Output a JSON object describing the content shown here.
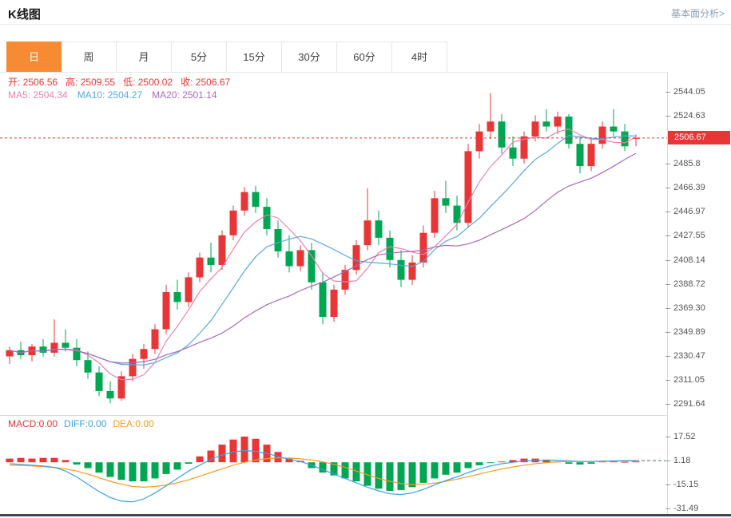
{
  "header": {
    "title": "K线图",
    "link_label": "基本面分析>"
  },
  "tabs": {
    "items": [
      "日",
      "周",
      "月",
      "5分",
      "15分",
      "30分",
      "60分",
      "4时"
    ],
    "selected": "日",
    "selected_color": "#f78b33"
  },
  "ohlc": {
    "color": "#e83535",
    "items": [
      {
        "label": "开:",
        "value": "2506.56"
      },
      {
        "label": "高:",
        "value": "2509.55"
      },
      {
        "label": "低:",
        "value": "2500.02"
      },
      {
        "label": "收:",
        "value": "2506.67"
      }
    ]
  },
  "ma_legend": {
    "items": [
      {
        "label": "MA5:",
        "value": "2504.34",
        "color": "#f080ab"
      },
      {
        "label": "MA10:",
        "value": "2504.27",
        "color": "#55a8e0"
      },
      {
        "label": "MA20:",
        "value": "2501.14",
        "color": "#a868b8"
      }
    ]
  },
  "macd_legend": {
    "items": [
      {
        "label": "MACD:",
        "value": "0.00",
        "color": "#e83535"
      },
      {
        "label": "DIFF:",
        "value": "0.00",
        "color": "#3ba0e6"
      },
      {
        "label": "DEA:",
        "value": "0.00",
        "color": "#f59a23"
      }
    ]
  },
  "chart_data": [
    {
      "type": "candlestick",
      "title": "K线图 日线",
      "ylim": [
        2282.6,
        2560.2
      ],
      "y_axis_labels": [
        "2544.05",
        "2524.63",
        "2485.8",
        "2466.39",
        "2446.97",
        "2427.55",
        "2408.14",
        "2388.72",
        "2369.30",
        "2349.89",
        "2330.47",
        "2311.05",
        "2291.64"
      ],
      "current_price": 2506.67,
      "current_price_label": "2506.67",
      "ma_windows": [
        5,
        10,
        20
      ],
      "colors": {
        "up": "#e83535",
        "down": "#00a651",
        "ma5": "#f080ab",
        "ma10": "#55a8e0",
        "ma20": "#a868b8",
        "price_line": "#e83535"
      },
      "candles": [
        [
          2330,
          2338,
          2324,
          2335
        ],
        [
          2335,
          2342,
          2328,
          2331
        ],
        [
          2331,
          2340,
          2326,
          2338
        ],
        [
          2338,
          2344,
          2330,
          2333
        ],
        [
          2333,
          2360,
          2330,
          2341
        ],
        [
          2341,
          2352,
          2334,
          2337
        ],
        [
          2337,
          2344,
          2322,
          2327
        ],
        [
          2327,
          2334,
          2312,
          2317
        ],
        [
          2317,
          2322,
          2298,
          2302
        ],
        [
          2302,
          2310,
          2292,
          2296
        ],
        [
          2296,
          2318,
          2294,
          2314
        ],
        [
          2314,
          2332,
          2310,
          2328
        ],
        [
          2328,
          2340,
          2320,
          2336
        ],
        [
          2336,
          2356,
          2332,
          2352
        ],
        [
          2352,
          2388,
          2348,
          2382
        ],
        [
          2382,
          2392,
          2368,
          2374
        ],
        [
          2374,
          2398,
          2370,
          2394
        ],
        [
          2394,
          2414,
          2390,
          2410
        ],
        [
          2410,
          2422,
          2398,
          2404
        ],
        [
          2404,
          2432,
          2400,
          2428
        ],
        [
          2428,
          2452,
          2424,
          2448
        ],
        [
          2448,
          2467,
          2444,
          2463
        ],
        [
          2463,
          2468,
          2446,
          2451
        ],
        [
          2451,
          2458,
          2428,
          2433
        ],
        [
          2433,
          2440,
          2410,
          2415
        ],
        [
          2415,
          2428,
          2398,
          2403
        ],
        [
          2403,
          2420,
          2399,
          2416
        ],
        [
          2416,
          2422,
          2384,
          2390
        ],
        [
          2390,
          2398,
          2356,
          2362
        ],
        [
          2362,
          2388,
          2358,
          2384
        ],
        [
          2384,
          2404,
          2380,
          2400
        ],
        [
          2400,
          2424,
          2396,
          2420
        ],
        [
          2420,
          2466,
          2416,
          2440
        ],
        [
          2440,
          2448,
          2420,
          2426
        ],
        [
          2426,
          2432,
          2402,
          2408
        ],
        [
          2408,
          2416,
          2386,
          2392
        ],
        [
          2392,
          2412,
          2388,
          2406
        ],
        [
          2406,
          2436,
          2402,
          2430
        ],
        [
          2430,
          2464,
          2426,
          2458
        ],
        [
          2458,
          2472,
          2446,
          2452
        ],
        [
          2452,
          2460,
          2432,
          2438
        ],
        [
          2438,
          2502,
          2434,
          2496
        ],
        [
          2496,
          2518,
          2490,
          2512
        ],
        [
          2512,
          2543,
          2506,
          2520
        ],
        [
          2520,
          2526,
          2494,
          2499
        ],
        [
          2499,
          2508,
          2484,
          2490
        ],
        [
          2490,
          2512,
          2486,
          2508
        ],
        [
          2508,
          2525,
          2504,
          2520
        ],
        [
          2520,
          2530,
          2512,
          2516
        ],
        [
          2516,
          2528,
          2510,
          2524
        ],
        [
          2524,
          2526,
          2498,
          2502
        ],
        [
          2502,
          2508,
          2478,
          2484
        ],
        [
          2484,
          2506,
          2480,
          2502
        ],
        [
          2502,
          2520,
          2498,
          2516
        ],
        [
          2516,
          2530,
          2508,
          2512
        ],
        [
          2512,
          2518,
          2496,
          2500
        ],
        [
          2506.56,
          2509.55,
          2500.02,
          2506.67
        ]
      ]
    },
    {
      "type": "bar",
      "title": "MACD",
      "ylim": [
        -34.2,
        32.2
      ],
      "y_axis_labels": [
        "17.52",
        "1.18",
        "-15.15",
        "-31.49"
      ],
      "colors": {
        "positive": "#e83535",
        "negative": "#00a651",
        "diff": "#3ba0e6",
        "dea": "#f59a23"
      },
      "macd": [
        2.5,
        3,
        2.5,
        3,
        3,
        1.5,
        -1.5,
        -4,
        -7,
        -10,
        -12,
        -13,
        -13,
        -11,
        -8,
        -5,
        -1,
        4,
        8,
        12,
        15.5,
        17.5,
        16,
        12,
        7,
        3,
        1,
        -4,
        -7,
        -9,
        -11,
        -13,
        -16,
        -18,
        -19.5,
        -19,
        -17,
        -14,
        -11,
        -8.5,
        -7,
        -4,
        -2,
        -0.5,
        0.5,
        1.5,
        2.5,
        2.5,
        1.5,
        0.5,
        -1,
        -1.5,
        -1,
        0.5,
        0.8,
        0.3,
        0.5
      ],
      "diff": [
        -1,
        -1.5,
        -2,
        -2.5,
        -3.5,
        -6,
        -10,
        -15,
        -20,
        -24,
        -26.5,
        -27,
        -25,
        -21,
        -16,
        -11,
        -6,
        -2,
        2,
        5,
        7,
        8,
        7.5,
        6,
        4,
        2,
        0.5,
        -2,
        -5,
        -8,
        -11,
        -14,
        -17,
        -19.5,
        -21.5,
        -22,
        -21,
        -18.5,
        -15.5,
        -12.5,
        -10,
        -7,
        -4.5,
        -2.5,
        -1,
        0,
        0.8,
        1.3,
        1.5,
        1.4,
        1,
        0.6,
        0.5,
        0.8,
        1,
        1.1,
        1.18
      ],
      "dea": [
        -2,
        -2.2,
        -2.5,
        -3,
        -3.5,
        -4.5,
        -6,
        -8,
        -10.5,
        -13,
        -15,
        -16.5,
        -17,
        -16.5,
        -15.5,
        -14,
        -12,
        -9.5,
        -7,
        -4.5,
        -2,
        0,
        1.5,
        2.5,
        3,
        2.8,
        2.3,
        1.5,
        0.3,
        -1.5,
        -3.5,
        -6,
        -8.5,
        -11,
        -13,
        -14.5,
        -15.2,
        -15,
        -14.2,
        -13,
        -11.5,
        -9.8,
        -8,
        -6.2,
        -4.6,
        -3.2,
        -2,
        -1,
        -0.2,
        0.3,
        0.5,
        0.5,
        0.5,
        0.6,
        0.7,
        0.8,
        0.9
      ]
    }
  ]
}
